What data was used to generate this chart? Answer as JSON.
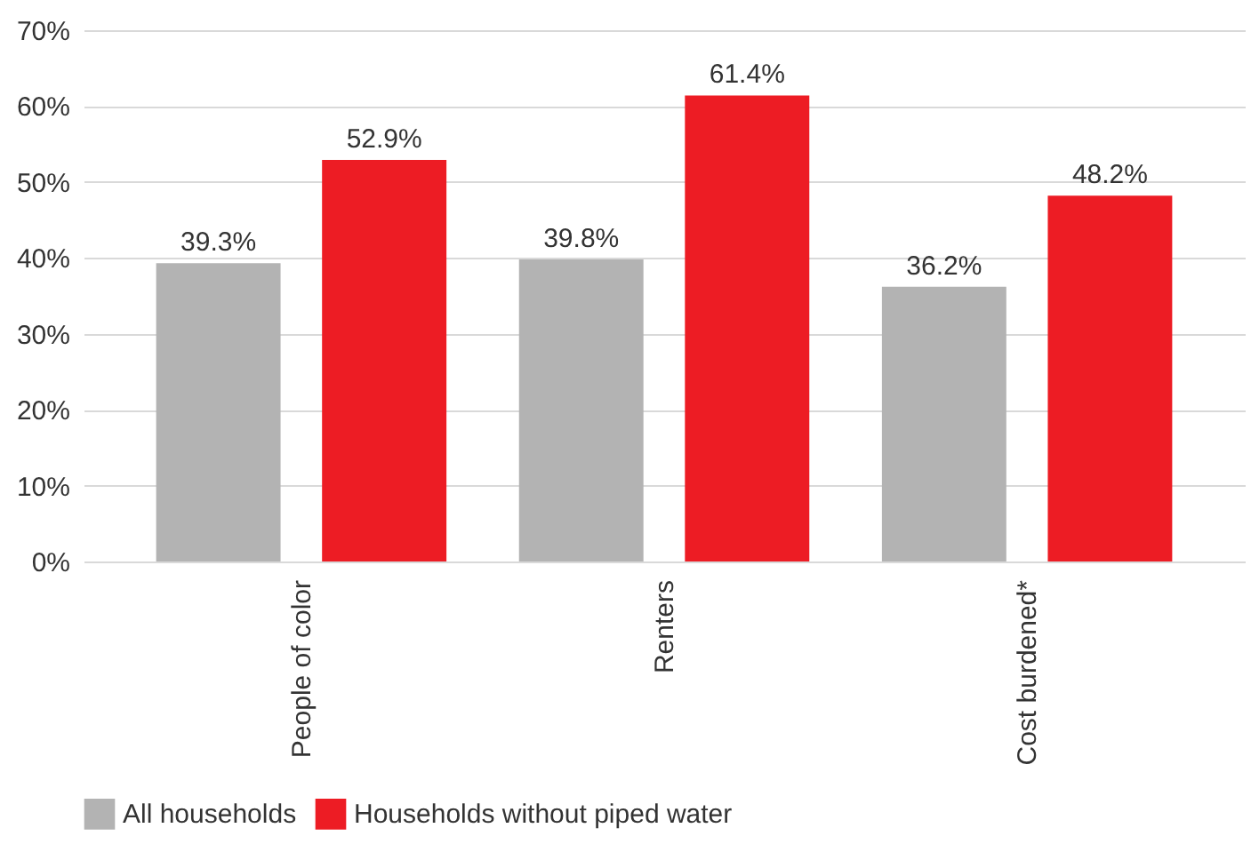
{
  "chart_data": {
    "type": "bar",
    "categories": [
      "People of color",
      "Renters",
      "Cost burdened*"
    ],
    "series": [
      {
        "name": "All households",
        "color": "#b3b3b3",
        "values": [
          39.3,
          39.8,
          36.2
        ],
        "value_labels": [
          "39.3%",
          "39.8%",
          "36.2%"
        ]
      },
      {
        "name": "Households without piped water",
        "color": "#ed1c24",
        "values": [
          52.9,
          61.4,
          48.2
        ],
        "value_labels": [
          "52.9%",
          "61.4%",
          "48.2%"
        ]
      }
    ],
    "ylim": [
      0,
      70
    ],
    "yticks": [
      {
        "value": 0,
        "label": "0%"
      },
      {
        "value": 10,
        "label": "10%"
      },
      {
        "value": 20,
        "label": "20%"
      },
      {
        "value": 30,
        "label": "30%"
      },
      {
        "value": 40,
        "label": "40%"
      },
      {
        "value": 50,
        "label": "50%"
      },
      {
        "value": 60,
        "label": "60%"
      },
      {
        "value": 70,
        "label": "70%"
      }
    ],
    "grid": "y",
    "legend": "bottom"
  }
}
